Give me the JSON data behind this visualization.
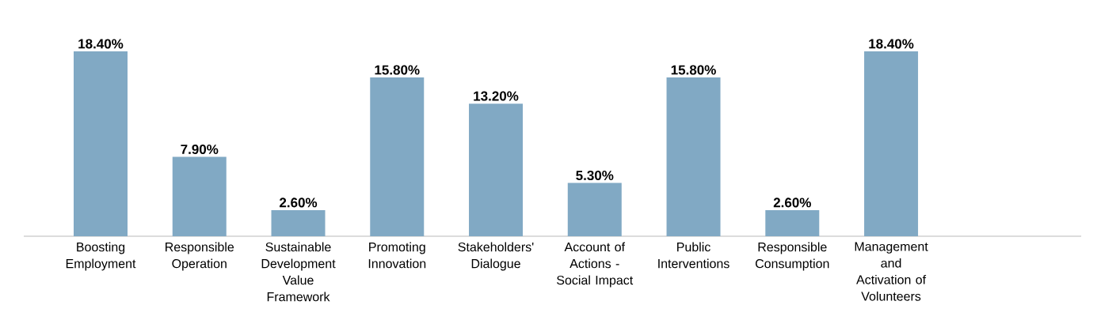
{
  "chart_data": {
    "type": "bar",
    "categories": [
      "Boosting Employment",
      "Responsible Operation",
      "Sustainable Development Value Framework",
      "Promoting Innovation",
      "Stakeholders' Dialogue",
      "Account of Actions - Social Impact",
      "Public Interventions",
      "Responsible Consumption",
      "Management and Activation of Volunteers"
    ],
    "values": [
      18.4,
      7.9,
      2.6,
      15.8,
      13.2,
      5.3,
      15.8,
      2.6,
      18.4
    ],
    "value_labels": [
      "18.40%",
      "7.90%",
      "2.60%",
      "15.80%",
      "13.20%",
      "5.30%",
      "15.80%",
      "2.60%",
      "18.40%"
    ],
    "color": "#81a9c4"
  }
}
